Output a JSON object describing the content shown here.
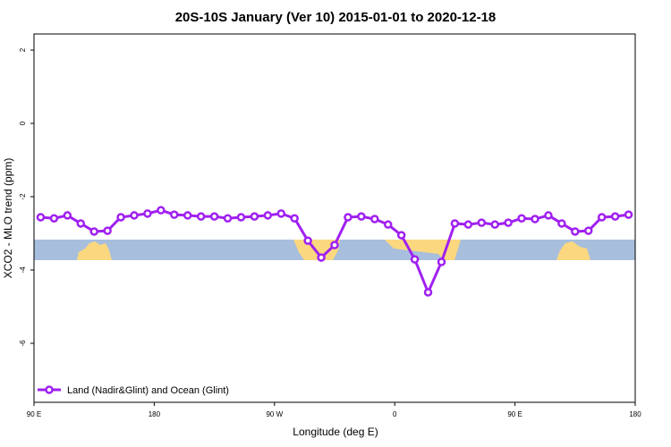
{
  "chart_data": {
    "type": "line",
    "title": "20S-10S January (Ver 10)   2015-01-01 to 2020-12-18",
    "x_label": "Longitude (deg E)",
    "y_label": "XCO2 - MLO trend (ppm)",
    "x": [
      95,
      105,
      115,
      125,
      135,
      145,
      155,
      165,
      175,
      185,
      195,
      205,
      215,
      225,
      235,
      245,
      255,
      265,
      275,
      285,
      295,
      305,
      315,
      325,
      335,
      345,
      355,
      365,
      375,
      385,
      395,
      405,
      415,
      425,
      435,
      445,
      455,
      465,
      475,
      485,
      495,
      505,
      515,
      525,
      535
    ],
    "series": [
      {
        "name": "Land (Nadir&Glint) and Ocean (Glint)",
        "color": "#a020f0",
        "values": [
          -2.56,
          -2.59,
          -2.51,
          -2.73,
          -2.95,
          -2.93,
          -2.56,
          -2.51,
          -2.46,
          -2.37,
          -2.49,
          -2.51,
          -2.54,
          -2.54,
          -2.59,
          -2.56,
          -2.54,
          -2.51,
          -2.46,
          -2.59,
          -3.2,
          -3.66,
          -3.32,
          -2.56,
          -2.54,
          -2.61,
          -2.76,
          -3.05,
          -3.71,
          -4.61,
          -3.78,
          -2.73,
          -2.76,
          -2.71,
          -2.76,
          -2.71,
          -2.59,
          -2.61,
          -2.51,
          -2.73,
          -2.95,
          -2.93,
          -2.56,
          -2.54,
          -2.49
        ]
      }
    ],
    "xlim": [
      90,
      540
    ],
    "xticks": [
      {
        "value": 90,
        "label": "90 E"
      },
      180,
      {
        "value": 270,
        "label": "90 W"
      },
      {
        "value": 360,
        "label": "0"
      },
      {
        "value": 450,
        "label": "90 E"
      },
      {
        "value": 540,
        "label": "180"
      }
    ],
    "ylim": [
      -7.61,
      2.44
    ],
    "yticks": [
      2,
      0,
      -2,
      -4,
      -6
    ],
    "legend": "bottom-left"
  }
}
